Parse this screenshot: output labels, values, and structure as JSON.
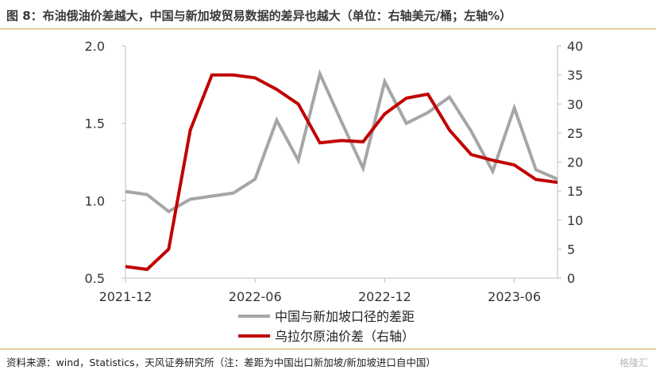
{
  "title": "图 8：布油俄油价差越大，中国与新加坡贸易数据的差异也越大（单位：右轴美元/桶；左轴%）",
  "source": "资料来源：wind，Statistics，天风证券研究所（注：差距为中国出口新加坡/新加坡进口自中国）",
  "watermark": "格隆汇",
  "chart_data": {
    "type": "line",
    "x_ticks": [
      "2021-12",
      "2022-06",
      "2022-12",
      "2023-06"
    ],
    "x": [
      "2021-12",
      "2022-01",
      "2022-02",
      "2022-03",
      "2022-04",
      "2022-05",
      "2022-06",
      "2022-07",
      "2022-08",
      "2022-09",
      "2022-10",
      "2022-11",
      "2022-12",
      "2023-01",
      "2023-02",
      "2023-03",
      "2023-04",
      "2023-05",
      "2023-06",
      "2023-07",
      "2023-08"
    ],
    "left_axis": {
      "ylim": [
        0.5,
        2.0
      ],
      "ticks": [
        "0.5",
        "1.0",
        "1.5",
        "2.0"
      ]
    },
    "right_axis": {
      "ylim": [
        0,
        40
      ],
      "ticks": [
        "0",
        "5",
        "10",
        "15",
        "20",
        "25",
        "30",
        "35",
        "40"
      ]
    },
    "series": [
      {
        "name": "中国与新加坡口径的差距",
        "axis": "left",
        "color": "#a6a6a6",
        "values": [
          1.06,
          1.04,
          0.93,
          1.01,
          1.03,
          1.05,
          1.14,
          1.52,
          1.26,
          1.82,
          1.51,
          1.21,
          1.77,
          1.5,
          1.57,
          1.67,
          1.45,
          1.19,
          1.6,
          1.2,
          1.14
        ]
      },
      {
        "name": "乌拉尔原油价差（右轴）",
        "axis": "right",
        "color": "#c00000",
        "values": [
          2,
          1.5,
          5,
          25.5,
          35,
          35,
          34.5,
          32.5,
          30,
          23.3,
          23.7,
          23.5,
          28.3,
          31,
          31.7,
          25.5,
          21.3,
          20.3,
          19.5,
          17,
          16.5
        ]
      }
    ],
    "legend_position": "bottom-center",
    "grid": false
  }
}
